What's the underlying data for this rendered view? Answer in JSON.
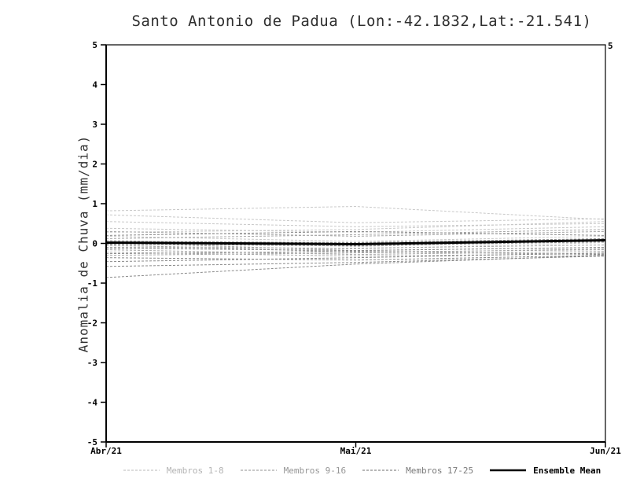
{
  "title": "Santo Antonio de Padua (Lon:-42.1832,Lat:-21.541)",
  "axes": {
    "right_top_label": "5"
  },
  "chart_data": {
    "type": "line",
    "title": "Santo Antonio de Padua (Lon:-42.1832,Lat:-21.541)",
    "ylabel": "Anomalia de Chuva (mm/dia)",
    "xlabel": "",
    "x_categories": [
      "Abr/21",
      "Mai/21",
      "Jun/21"
    ],
    "ylim": [
      -5,
      5
    ],
    "yticks": [
      5,
      4,
      3,
      2,
      1,
      0,
      -1,
      -2,
      -3,
      -4,
      -5
    ],
    "grid": false,
    "legend_position": "bottom",
    "groups": [
      {
        "name": "Membros 1-8",
        "color": "#c8c8c8",
        "label_color": "#b4b4b4",
        "dash": "3 2",
        "width": 1,
        "series": [
          [
            0.82,
            0.93,
            0.6
          ],
          [
            0.72,
            0.52,
            0.62
          ],
          [
            0.55,
            0.42,
            0.5
          ],
          [
            0.38,
            0.28,
            0.42
          ],
          [
            0.28,
            0.35,
            0.55
          ],
          [
            0.18,
            0.05,
            0.18
          ],
          [
            0.08,
            -0.08,
            0.08
          ],
          [
            -0.06,
            -0.14,
            0.02
          ]
        ]
      },
      {
        "name": "Membros 9-16",
        "color": "#a6a6a6",
        "label_color": "#969696",
        "dash": "3 2",
        "width": 1,
        "series": [
          [
            0.3,
            0.18,
            0.3
          ],
          [
            0.12,
            0.22,
            0.35
          ],
          [
            0.02,
            -0.18,
            -0.1
          ],
          [
            -0.04,
            -0.22,
            -0.16
          ],
          [
            -0.1,
            -0.12,
            -0.04
          ],
          [
            -0.16,
            -0.28,
            -0.2
          ],
          [
            -0.22,
            -0.32,
            -0.26
          ],
          [
            -0.3,
            -0.24,
            -0.14
          ]
        ]
      },
      {
        "name": "Membros 17-25",
        "color": "#8a8a8a",
        "label_color": "#7a7a7a",
        "dash": "3 2",
        "width": 1,
        "series": [
          [
            0.2,
            0.3,
            0.2
          ],
          [
            0.05,
            0.02,
            0.12
          ],
          [
            -0.02,
            -0.06,
            0.04
          ],
          [
            -0.12,
            -0.18,
            -0.1
          ],
          [
            -0.26,
            -0.2,
            -0.28
          ],
          [
            -0.36,
            -0.42,
            -0.3
          ],
          [
            -0.46,
            -0.36,
            -0.24
          ],
          [
            -0.58,
            -0.48,
            -0.32
          ],
          [
            -0.86,
            -0.52,
            -0.3
          ]
        ]
      },
      {
        "name": "Ensemble Mean",
        "color": "#000000",
        "label_color": "#000000",
        "dash": null,
        "width": 3,
        "series": [
          [
            0.02,
            -0.02,
            0.08
          ]
        ]
      }
    ]
  }
}
